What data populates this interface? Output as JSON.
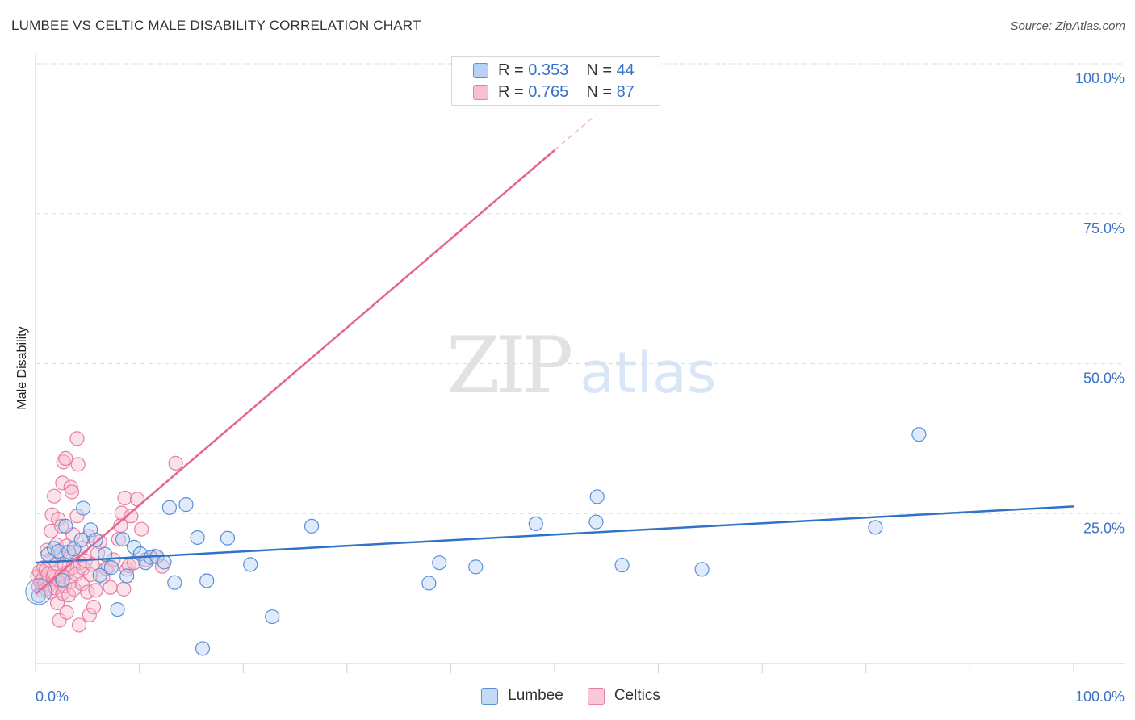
{
  "title": "LUMBEE VS CELTIC MALE DISABILITY CORRELATION CHART",
  "source": "Source: ZipAtlas.com",
  "watermark": {
    "part1": "ZIP",
    "part2": "atlas"
  },
  "legend_top": [
    {
      "r_label": "R =",
      "r_value": "0.353",
      "n_label": "N =",
      "n_value": "44"
    },
    {
      "r_label": "R =",
      "r_value": "0.765",
      "n_label": "N =",
      "n_value": "87"
    }
  ],
  "colors": {
    "lumbee_fill": "#b9d2f3",
    "lumbee_stroke": "#5b8fd6",
    "lumbee_line": "#2f72c9",
    "celtics_fill": "#f7bfd1",
    "celtics_stroke": "#e87ea3",
    "celtics_line": "#e5668f",
    "axis_text_blue": "#3b72c4",
    "grid": "#dcdcdc"
  },
  "chart_data": {
    "type": "scatter",
    "title": "LUMBEE VS CELTIC MALE DISABILITY CORRELATION CHART",
    "xlabel": "",
    "ylabel": "Male Disability",
    "xlim": [
      0,
      100
    ],
    "ylim": [
      0,
      100
    ],
    "x_tick_labels": [
      "0.0%",
      "100.0%"
    ],
    "y_ticks": [
      25,
      50,
      75,
      100
    ],
    "y_tick_labels": [
      "25.0%",
      "50.0%",
      "75.0%",
      "100.0%"
    ],
    "series": [
      {
        "name": "Lumbee",
        "r": 0.353,
        "n": 44,
        "trend": {
          "x0": 0,
          "y0": 16.8,
          "x1": 100,
          "y1": 26.2
        },
        "points": [
          [
            0.3,
            11.3
          ],
          [
            1.2,
            18.2
          ],
          [
            1.8,
            19.2
          ],
          [
            2.2,
            18.7
          ],
          [
            2.6,
            13.9
          ],
          [
            2.9,
            22.9
          ],
          [
            3.2,
            18.6
          ],
          [
            3.7,
            19.1
          ],
          [
            4.4,
            20.6
          ],
          [
            4.6,
            25.9
          ],
          [
            5.3,
            22.3
          ],
          [
            5.8,
            20.6
          ],
          [
            6.2,
            14.7
          ],
          [
            6.7,
            18.2
          ],
          [
            7.3,
            16.0
          ],
          [
            7.9,
            9.0
          ],
          [
            8.4,
            20.7
          ],
          [
            8.8,
            14.6
          ],
          [
            9.5,
            19.4
          ],
          [
            10.1,
            18.3
          ],
          [
            10.6,
            16.8
          ],
          [
            11.1,
            17.7
          ],
          [
            11.7,
            17.8
          ],
          [
            12.4,
            16.9
          ],
          [
            12.9,
            26.0
          ],
          [
            13.4,
            13.5
          ],
          [
            14.5,
            26.5
          ],
          [
            15.6,
            21.0
          ],
          [
            16.1,
            2.5
          ],
          [
            16.5,
            13.8
          ],
          [
            18.5,
            20.9
          ],
          [
            20.7,
            16.5
          ],
          [
            22.8,
            7.8
          ],
          [
            26.6,
            22.9
          ],
          [
            37.9,
            13.4
          ],
          [
            38.9,
            16.8
          ],
          [
            42.4,
            16.1
          ],
          [
            48.2,
            23.3
          ],
          [
            54.0,
            23.6
          ],
          [
            54.1,
            27.8
          ],
          [
            56.5,
            16.4
          ],
          [
            64.2,
            15.7
          ],
          [
            80.9,
            22.7
          ],
          [
            85.1,
            38.2
          ]
        ]
      },
      {
        "name": "Celtics",
        "r": 0.765,
        "n": 87,
        "trend": {
          "x0": 0,
          "y0": 11.6,
          "x1": 50,
          "y1": 85.6,
          "dash_x1": 54,
          "dash_y1": 91.5
        },
        "points": [
          [
            0.2,
            14.5
          ],
          [
            0.3,
            12.8
          ],
          [
            0.4,
            15.3
          ],
          [
            0.5,
            13.6
          ],
          [
            0.6,
            12.2
          ],
          [
            0.7,
            14.1
          ],
          [
            0.8,
            16.0
          ],
          [
            0.9,
            13.3
          ],
          [
            1.0,
            15.6
          ],
          [
            1.0,
            12.4
          ],
          [
            1.1,
            18.9
          ],
          [
            1.2,
            14.9
          ],
          [
            1.3,
            13.0
          ],
          [
            1.4,
            17.2
          ],
          [
            1.5,
            22.1
          ],
          [
            1.5,
            11.9
          ],
          [
            1.6,
            24.8
          ],
          [
            1.7,
            14.5
          ],
          [
            1.8,
            15.1
          ],
          [
            1.8,
            27.9
          ],
          [
            1.9,
            12.6
          ],
          [
            2.0,
            19.8
          ],
          [
            2.0,
            16.7
          ],
          [
            2.1,
            10.1
          ],
          [
            2.2,
            24.1
          ],
          [
            2.3,
            13.9
          ],
          [
            2.3,
            7.2
          ],
          [
            2.4,
            18.3
          ],
          [
            2.5,
            14.6
          ],
          [
            2.5,
            22.9
          ],
          [
            2.6,
            30.1
          ],
          [
            2.6,
            11.7
          ],
          [
            2.7,
            33.6
          ],
          [
            2.8,
            16.4
          ],
          [
            2.8,
            12.9
          ],
          [
            2.9,
            34.2
          ],
          [
            3.0,
            19.6
          ],
          [
            3.0,
            8.5
          ],
          [
            3.1,
            15.2
          ],
          [
            3.2,
            11.4
          ],
          [
            3.3,
            17.9
          ],
          [
            3.4,
            29.4
          ],
          [
            3.4,
            13.6
          ],
          [
            3.5,
            28.6
          ],
          [
            3.6,
            16.0
          ],
          [
            3.6,
            21.5
          ],
          [
            3.7,
            12.4
          ],
          [
            3.8,
            18.6
          ],
          [
            3.9,
            14.9
          ],
          [
            4.0,
            24.6
          ],
          [
            4.0,
            37.5
          ],
          [
            4.1,
            33.2
          ],
          [
            4.2,
            6.4
          ],
          [
            4.3,
            16.8
          ],
          [
            4.4,
            19.2
          ],
          [
            4.5,
            13.3
          ],
          [
            4.6,
            15.9
          ],
          [
            4.8,
            17.1
          ],
          [
            5.0,
            11.9
          ],
          [
            5.1,
            21.2
          ],
          [
            5.2,
            8.1
          ],
          [
            5.3,
            14.8
          ],
          [
            5.5,
            16.5
          ],
          [
            5.6,
            9.4
          ],
          [
            5.8,
            12.2
          ],
          [
            6.0,
            18.4
          ],
          [
            6.2,
            20.3
          ],
          [
            6.5,
            14.4
          ],
          [
            6.8,
            15.8
          ],
          [
            7.0,
            16.1
          ],
          [
            7.2,
            12.7
          ],
          [
            7.5,
            17.3
          ],
          [
            8.0,
            20.7
          ],
          [
            8.2,
            23.0
          ],
          [
            8.3,
            25.1
          ],
          [
            8.5,
            12.4
          ],
          [
            8.6,
            27.6
          ],
          [
            8.8,
            15.7
          ],
          [
            9.0,
            16.3
          ],
          [
            9.2,
            24.6
          ],
          [
            9.5,
            16.8
          ],
          [
            9.8,
            27.4
          ],
          [
            10.2,
            22.4
          ],
          [
            10.6,
            17.3
          ],
          [
            11.5,
            17.9
          ],
          [
            12.2,
            16.2
          ],
          [
            13.5,
            33.4
          ]
        ]
      }
    ],
    "legend": [
      {
        "label": "Lumbee"
      },
      {
        "label": "Celtics"
      }
    ]
  }
}
